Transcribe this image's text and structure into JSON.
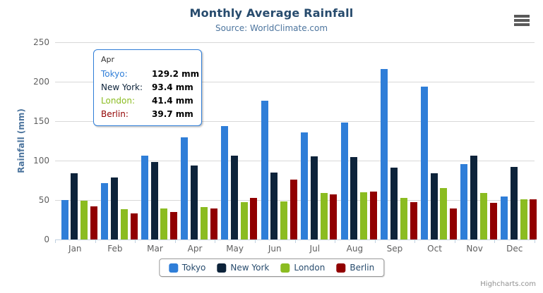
{
  "chart": {
    "title": "Monthly Average Rainfall",
    "subtitle": "Source: WorldClimate.com",
    "credit": "Highcharts.com"
  },
  "chart_data": {
    "type": "bar",
    "title": "Monthly Average Rainfall",
    "subtitle": "Source: WorldClimate.com",
    "xlabel": "",
    "ylabel": "Rainfall (mm)",
    "ylim": [
      0,
      250
    ],
    "y_ticks": [
      0,
      50,
      100,
      150,
      200,
      250
    ],
    "grid": true,
    "legend_position": "bottom",
    "categories": [
      "Jan",
      "Feb",
      "Mar",
      "Apr",
      "May",
      "Jun",
      "Jul",
      "Aug",
      "Sep",
      "Oct",
      "Nov",
      "Dec"
    ],
    "series": [
      {
        "name": "Tokyo",
        "color": "#2f7ed8",
        "values": [
          49.9,
          71.5,
          106.4,
          129.2,
          144.0,
          176.0,
          135.6,
          148.5,
          216.4,
          194.1,
          95.6,
          54.4
        ]
      },
      {
        "name": "New York",
        "color": "#0d233a",
        "values": [
          83.6,
          78.8,
          98.5,
          93.4,
          106.0,
          84.5,
          105.0,
          104.3,
          91.2,
          83.5,
          106.6,
          92.3
        ]
      },
      {
        "name": "London",
        "color": "#8bbc21",
        "values": [
          48.9,
          38.8,
          39.3,
          41.4,
          47.0,
          48.3,
          59.0,
          59.6,
          52.4,
          65.2,
          59.3,
          51.2
        ]
      },
      {
        "name": "Berlin",
        "color": "#910000",
        "values": [
          42.4,
          33.2,
          34.5,
          39.7,
          52.6,
          75.5,
          57.4,
          60.4,
          47.6,
          39.1,
          46.8,
          51.1
        ]
      }
    ]
  },
  "tooltip": {
    "header": "Apr",
    "border_color": "#2f7ed8",
    "rows": [
      {
        "label": "Tokyo:",
        "value": "129.2 mm",
        "color": "#2f7ed8"
      },
      {
        "label": "New York:",
        "value": "93.4 mm",
        "color": "#0d233a"
      },
      {
        "label": "London:",
        "value": "41.4 mm",
        "color": "#8bbc21"
      },
      {
        "label": "Berlin:",
        "value": "39.7 mm",
        "color": "#910000"
      }
    ]
  },
  "legend": {
    "items": [
      {
        "label": "Tokyo",
        "color": "#2f7ed8"
      },
      {
        "label": "New York",
        "color": "#0d233a"
      },
      {
        "label": "London",
        "color": "#8bbc21"
      },
      {
        "label": "Berlin",
        "color": "#910000"
      }
    ]
  },
  "icons": {
    "context_menu": "hamburger-icon"
  }
}
